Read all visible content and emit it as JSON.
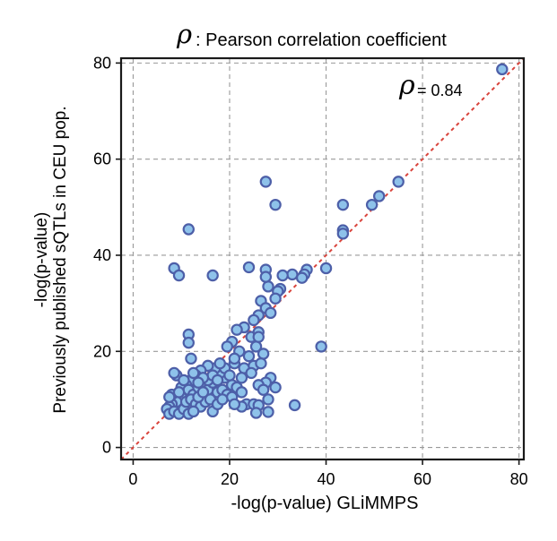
{
  "chart_data": {
    "type": "scatter",
    "title": {
      "symbol": "ρ",
      "text": ": Pearson correlation coefficient"
    },
    "annotation": {
      "symbol": "ρ",
      "value": "= 0.84"
    },
    "xlabel": "-log(p-value) GLiMMPS",
    "ylabel": [
      "-log(p-value)",
      "Previously published sQTLs in CEU pop."
    ],
    "xlim": [
      -2.5,
      81
    ],
    "ylim": [
      -2.5,
      81
    ],
    "x_ticks": [
      0,
      20,
      40,
      60,
      80
    ],
    "y_ticks": [
      0,
      20,
      40,
      60,
      80
    ],
    "grid": true,
    "diagonal": {
      "style": "dashed",
      "color": "#d9443c",
      "from": [
        -2.5,
        -2.5
      ],
      "to": [
        81,
        81
      ]
    },
    "point_fill": "#8ec2ea",
    "point_edge": "#4d5fa8",
    "points": [
      [
        76.5,
        78.7
      ],
      [
        55.0,
        55.3
      ],
      [
        51.0,
        52.3
      ],
      [
        49.5,
        50.5
      ],
      [
        43.5,
        50.5
      ],
      [
        43.5,
        45.2
      ],
      [
        43.5,
        44.5
      ],
      [
        27.5,
        55.3
      ],
      [
        29.5,
        50.5
      ],
      [
        11.5,
        45.4
      ],
      [
        8.5,
        37.3
      ],
      [
        9.5,
        35.8
      ],
      [
        16.5,
        35.8
      ],
      [
        24.0,
        37.5
      ],
      [
        27.5,
        37.0
      ],
      [
        40.0,
        37.3
      ],
      [
        36.0,
        37.0
      ],
      [
        35.5,
        36.0
      ],
      [
        35.0,
        35.3
      ],
      [
        33.0,
        36.0
      ],
      [
        31.0,
        35.8
      ],
      [
        30.5,
        33.0
      ],
      [
        30.0,
        32.5
      ],
      [
        29.5,
        31.0
      ],
      [
        28.0,
        33.5
      ],
      [
        27.5,
        35.5
      ],
      [
        26.5,
        30.5
      ],
      [
        27.5,
        29.0
      ],
      [
        28.5,
        28.0
      ],
      [
        26.0,
        27.5
      ],
      [
        25.0,
        26.5
      ],
      [
        23.0,
        25.0
      ],
      [
        21.5,
        24.5
      ],
      [
        20.5,
        22.0
      ],
      [
        24.5,
        23.0
      ],
      [
        26.0,
        24.0
      ],
      [
        25.5,
        21.0
      ],
      [
        27.0,
        19.5
      ],
      [
        24.0,
        19.0
      ],
      [
        22.0,
        20.0
      ],
      [
        19.5,
        21.0
      ],
      [
        21.0,
        17.5
      ],
      [
        23.0,
        16.5
      ],
      [
        25.0,
        17.0
      ],
      [
        26.5,
        17.5
      ],
      [
        28.5,
        14.5
      ],
      [
        27.5,
        13.5
      ],
      [
        26.0,
        13.0
      ],
      [
        27.0,
        12.0
      ],
      [
        24.5,
        15.5
      ],
      [
        22.5,
        14.5
      ],
      [
        20.5,
        13.0
      ],
      [
        19.0,
        14.5
      ],
      [
        18.0,
        15.5
      ],
      [
        17.0,
        16.5
      ],
      [
        15.5,
        17.0
      ],
      [
        14.0,
        16.0
      ],
      [
        13.0,
        15.0
      ],
      [
        12.0,
        14.0
      ],
      [
        11.0,
        13.0
      ],
      [
        10.0,
        12.5
      ],
      [
        9.0,
        15.0
      ],
      [
        8.5,
        15.5
      ],
      [
        10.5,
        14.0
      ],
      [
        11.5,
        12.0
      ],
      [
        12.5,
        11.0
      ],
      [
        13.5,
        12.5
      ],
      [
        14.5,
        13.0
      ],
      [
        15.5,
        12.0
      ],
      [
        16.5,
        13.5
      ],
      [
        17.5,
        11.5
      ],
      [
        18.5,
        12.0
      ],
      [
        19.5,
        11.0
      ],
      [
        20.5,
        10.5
      ],
      [
        21.5,
        12.5
      ],
      [
        22.5,
        11.5
      ],
      [
        23.5,
        9.0
      ],
      [
        22.5,
        8.5
      ],
      [
        21.0,
        9.0
      ],
      [
        25.0,
        9.0
      ],
      [
        26.0,
        8.8
      ],
      [
        33.5,
        8.8
      ],
      [
        28.0,
        10.0
      ],
      [
        29.5,
        12.5
      ],
      [
        21.0,
        18.5
      ],
      [
        26.0,
        23.0
      ],
      [
        25.5,
        7.2
      ],
      [
        28.0,
        7.4
      ],
      [
        10.0,
        10.5
      ],
      [
        9.0,
        9.5
      ],
      [
        8.0,
        9.0
      ],
      [
        7.5,
        8.5
      ],
      [
        7.0,
        8.0
      ],
      [
        7.5,
        7.0
      ],
      [
        8.5,
        7.5
      ],
      [
        9.5,
        7.0
      ],
      [
        10.5,
        8.0
      ],
      [
        11.0,
        9.5
      ],
      [
        12.0,
        10.0
      ],
      [
        13.0,
        9.0
      ],
      [
        14.0,
        8.5
      ],
      [
        15.0,
        9.5
      ],
      [
        16.0,
        10.0
      ],
      [
        16.5,
        7.5
      ],
      [
        17.5,
        9.0
      ],
      [
        18.5,
        10.0
      ],
      [
        11.5,
        23.5
      ],
      [
        11.5,
        21.8
      ],
      [
        12.0,
        18.5
      ],
      [
        8.0,
        11.0
      ],
      [
        7.5,
        10.5
      ],
      [
        9.5,
        11.5
      ],
      [
        11.5,
        7.0
      ],
      [
        12.5,
        7.5
      ],
      [
        13.5,
        10.5
      ],
      [
        14.5,
        11.5
      ],
      [
        15.5,
        14.0
      ],
      [
        16.5,
        15.0
      ],
      [
        17.5,
        14.0
      ],
      [
        19.0,
        16.5
      ],
      [
        20.0,
        15.0
      ],
      [
        18.0,
        17.5
      ],
      [
        14.5,
        14.5
      ],
      [
        13.5,
        13.5
      ],
      [
        39.0,
        21.0
      ],
      [
        12.5,
        15.5
      ]
    ]
  }
}
